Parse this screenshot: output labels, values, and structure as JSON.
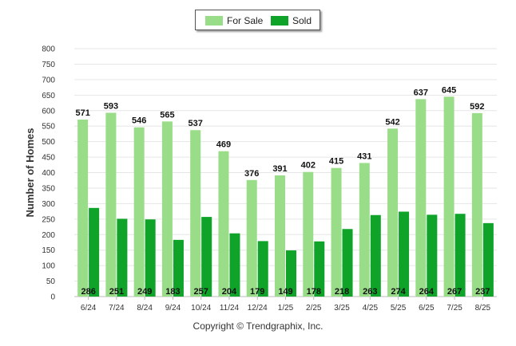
{
  "chart_data": {
    "type": "bar",
    "categories": [
      "6/24",
      "7/24",
      "8/24",
      "9/24",
      "10/24",
      "11/24",
      "12/24",
      "1/25",
      "2/25",
      "3/25",
      "4/25",
      "5/25",
      "6/25",
      "7/25",
      "8/25"
    ],
    "series": [
      {
        "name": "For Sale",
        "color": "#99dd88",
        "values": [
          571,
          593,
          546,
          565,
          537,
          469,
          376,
          391,
          402,
          415,
          431,
          542,
          637,
          645,
          592
        ]
      },
      {
        "name": "Sold",
        "color": "#0fa32a",
        "values": [
          286,
          251,
          249,
          183,
          257,
          204,
          179,
          149,
          178,
          218,
          263,
          274,
          264,
          267,
          237
        ]
      }
    ],
    "ylabel": "Number of Homes",
    "xlabel": "",
    "ylim": [
      0,
      800
    ],
    "yticks": [
      0,
      50,
      100,
      150,
      200,
      250,
      300,
      350,
      400,
      450,
      500,
      550,
      600,
      650,
      700,
      750,
      800
    ],
    "grid": true,
    "legend": "top-center"
  },
  "legend": {
    "for_sale_label": "For Sale",
    "sold_label": "Sold"
  },
  "footer": {
    "copyright": "Copyright © Trendgraphix, Inc."
  }
}
